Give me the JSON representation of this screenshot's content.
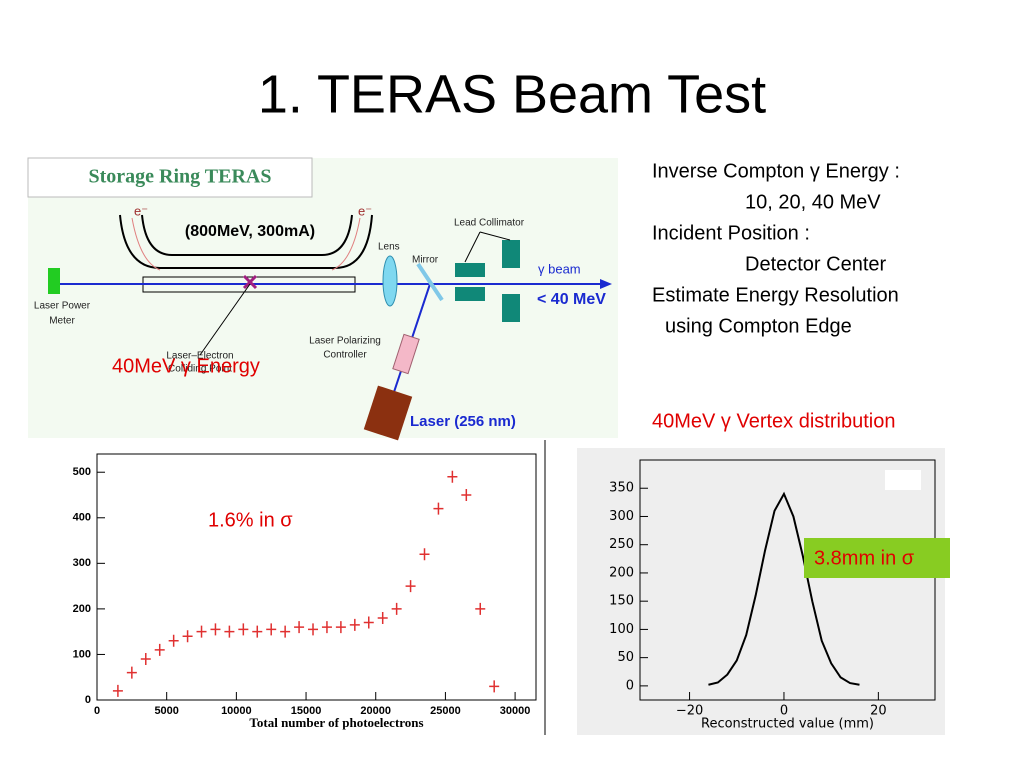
{
  "title": "1. TERAS Beam Test",
  "notes": [
    "Inverse Compton γ Energy :",
    "10, 20, 40 MeV",
    "Incident Position :",
    "Detector Center",
    "Estimate Energy Resolution",
    "using Compton Edge"
  ],
  "labels": {
    "energy": "40MeV γ Energy",
    "vertex": "40MeV γ Vertex distribution",
    "resolution_energy": "1.6% in σ",
    "resolution_vertex": "3.8mm in σ"
  },
  "diagram": {
    "ring": "Storage Ring   TERAS",
    "beam": "(800MeV, 300mA)",
    "electron": "e⁻",
    "lens": "Lens",
    "mirror": "Mirror",
    "collimator": "Lead Collimator",
    "gamma_beam": "γ beam",
    "max_energy": "< 40 MeV",
    "meter": [
      "Laser Power",
      "Meter"
    ],
    "colliding": [
      "Laser–Electron",
      "Colliding Point"
    ],
    "polarizing": [
      "Laser Polarizing",
      "Controller"
    ],
    "laser": "Laser (256 nm)"
  },
  "chart_data": [
    {
      "type": "scatter",
      "x_label": "Total number of photoelectrons",
      "color": "#e03030",
      "x": [
        1500,
        2500,
        3500,
        4500,
        5500,
        6500,
        7500,
        8500,
        9500,
        10500,
        11500,
        12500,
        13500,
        14500,
        15500,
        16500,
        17500,
        18500,
        19500,
        20500,
        21500,
        22500,
        23500,
        24500,
        25500,
        26500,
        27500,
        28500
      ],
      "values": [
        20,
        60,
        90,
        110,
        130,
        140,
        150,
        155,
        150,
        155,
        150,
        155,
        150,
        160,
        155,
        160,
        160,
        165,
        170,
        180,
        200,
        250,
        320,
        420,
        490,
        450,
        200,
        30
      ],
      "xlim": [
        0,
        31500
      ],
      "ylim": [
        0,
        540
      ],
      "xticks": [
        0,
        5000,
        10000,
        15000,
        20000,
        25000,
        30000
      ],
      "yticks": [
        0,
        100,
        200,
        300,
        400,
        500
      ]
    },
    {
      "type": "line",
      "x_label": "Reconstructed value (mm)",
      "color": "#000000",
      "x": [
        -16,
        -14,
        -12,
        -10,
        -8,
        -6,
        -4,
        -2,
        0,
        2,
        4,
        6,
        8,
        10,
        12,
        14,
        16
      ],
      "values": [
        2,
        6,
        20,
        45,
        90,
        160,
        240,
        310,
        340,
        300,
        230,
        150,
        80,
        40,
        15,
        5,
        2
      ],
      "xlim": [
        -30.5,
        32
      ],
      "ylim": [
        -25,
        400
      ],
      "xticks": [
        {
          "value": -20,
          "label": "−20"
        },
        0,
        20
      ],
      "yticks": [
        0,
        50,
        100,
        150,
        200,
        250,
        300,
        350
      ]
    }
  ]
}
